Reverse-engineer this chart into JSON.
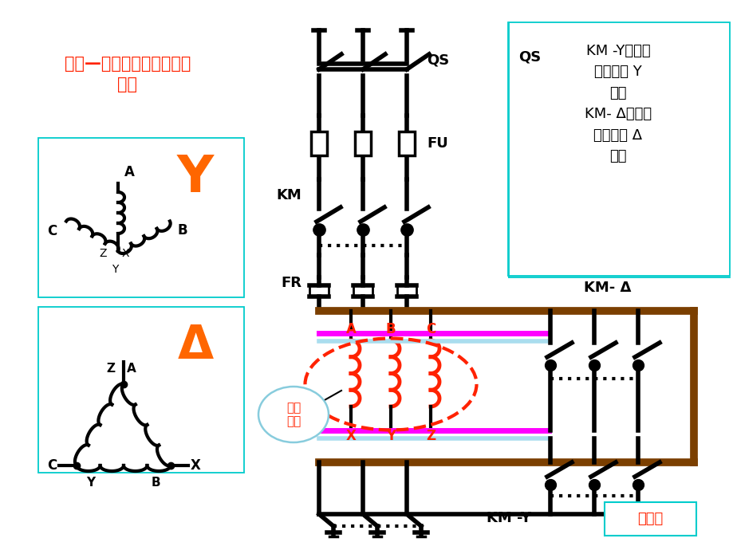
{
  "bg_color": "#ffffff",
  "title_text": "星形—三角形降压启动控制\n线路",
  "title_color": "#ff2200",
  "annotation_text": "KM -Y闭合，\n电机接成 Y\n形；\nKM- Δ闭合，\n电机接成 Δ\n形。",
  "qs_label": "QS",
  "fu_label": "FU",
  "km_label": "KM",
  "fr_label": "FR",
  "km_delta_label": "KM- Δ",
  "km_y_label": "KM -Y",
  "main_label": "主电路",
  "motor_label": "电机\n绕组",
  "y_symbol": "Y",
  "delta_symbol": "Δ",
  "cyan_border": "#00cccc",
  "brown_color": "#7B3F00",
  "magenta_color": "#ff00ff",
  "cyan_light": "#aaddee",
  "red_color": "#ff2200",
  "orange_color": "#ff6600",
  "black": "#000000"
}
